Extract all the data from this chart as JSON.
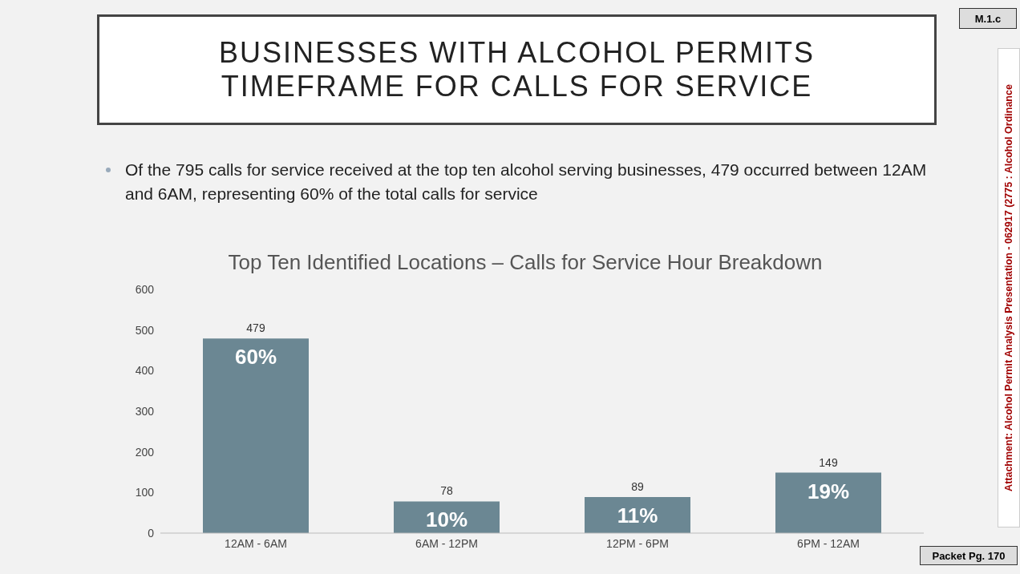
{
  "chart_data": {
    "type": "bar",
    "title": "BUSINESSES WITH ALCOHOL PERMITS\nTIMEFRAME FOR CALLS FOR SERVICE",
    "subtitle": "Top Ten Identified Locations – Calls for Service Hour Breakdown",
    "categories": [
      "12AM - 6AM",
      "6AM - 12PM",
      "12PM - 6PM",
      "6PM - 12AM"
    ],
    "values": [
      479,
      78,
      89,
      149
    ],
    "color": "#6b8793",
    "data_labels": true,
    "ylim": [
      0,
      600
    ],
    "yticks": [
      0,
      100,
      200,
      300,
      400,
      500,
      600
    ],
    "grid": false,
    "legend": false,
    "annotations": [
      "Of the 795 calls for service received at the top ten alcohol serving businesses, 479 occurred between 12AM and 6AM, representing 60% of the total calls for service",
      "M.1.c",
      "Attachment: Alcohol Permit Analysis Presentation - 062917  (2775 : Alcohol Ordinance",
      "Packet Pg. 170",
      {
        "text": "60%",
        "x": "12AM - 6AM",
        "y": 479
      },
      {
        "text": "10%",
        "x": "6AM - 12PM",
        "y": 78
      },
      {
        "text": "11%",
        "x": "12PM - 6PM",
        "y": 89
      },
      {
        "text": "19%",
        "x": "6PM - 12AM",
        "y": 149
      }
    ]
  }
}
